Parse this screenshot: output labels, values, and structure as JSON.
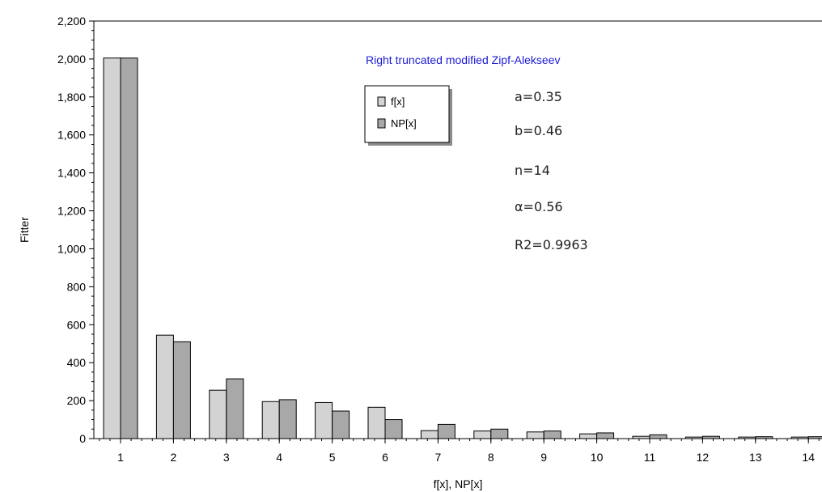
{
  "chart_data": {
    "type": "bar",
    "title": "Right truncated modified Zipf-Alekseev",
    "xlabel": "f[x], NP[x]",
    "ylabel": "Fitter",
    "ylim": [
      0,
      2200
    ],
    "yticks": [
      0,
      200,
      400,
      600,
      800,
      1000,
      1200,
      1400,
      1600,
      1800,
      2000,
      2200
    ],
    "ytick_labels": [
      "0",
      "200",
      "400",
      "600",
      "800",
      "1,000",
      "1,200",
      "1,400",
      "1,600",
      "1,800",
      "2,000",
      "2,200"
    ],
    "categories": [
      "1",
      "2",
      "3",
      "4",
      "5",
      "6",
      "7",
      "8",
      "9",
      "10",
      "11",
      "12",
      "13",
      "14"
    ],
    "series": [
      {
        "name": "f[x]",
        "color": "#d3d3d3",
        "values": [
          2005,
          545,
          255,
          195,
          190,
          165,
          42,
          40,
          35,
          25,
          12,
          8,
          8,
          8
        ]
      },
      {
        "name": "NP[x]",
        "color": "#a8a8a8",
        "values": [
          2005,
          510,
          315,
          205,
          145,
          100,
          75,
          50,
          40,
          30,
          20,
          12,
          10,
          10
        ]
      }
    ],
    "annotations": [
      "a=0.35",
      "b=0.46",
      "n=14",
      "α=0.56",
      "R2=0.9963"
    ],
    "title_color": "#1c1cd6",
    "legend_position": "upper-center",
    "grid": false
  }
}
